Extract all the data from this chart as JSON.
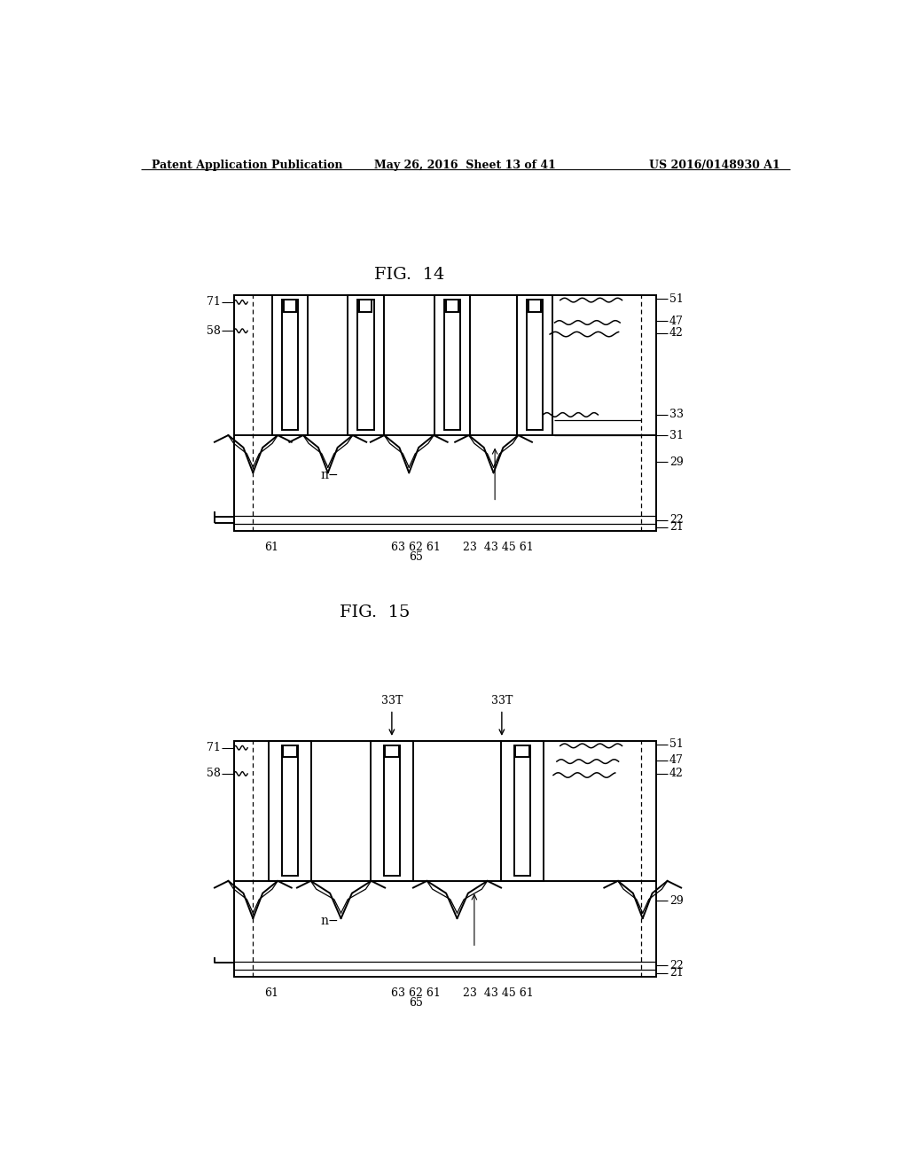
{
  "background_color": "#ffffff",
  "header_left": "Patent Application Publication",
  "header_center": "May 26, 2016  Sheet 13 of 41",
  "header_right": "US 2016/0148930 A1",
  "fig14_title": "FIG.  14",
  "fig15_title": "FIG.  15",
  "line_color": "#000000",
  "lw": 1.4,
  "tlw": 0.9,
  "fs": 9,
  "title_fs": 14,
  "header_fs": 9
}
